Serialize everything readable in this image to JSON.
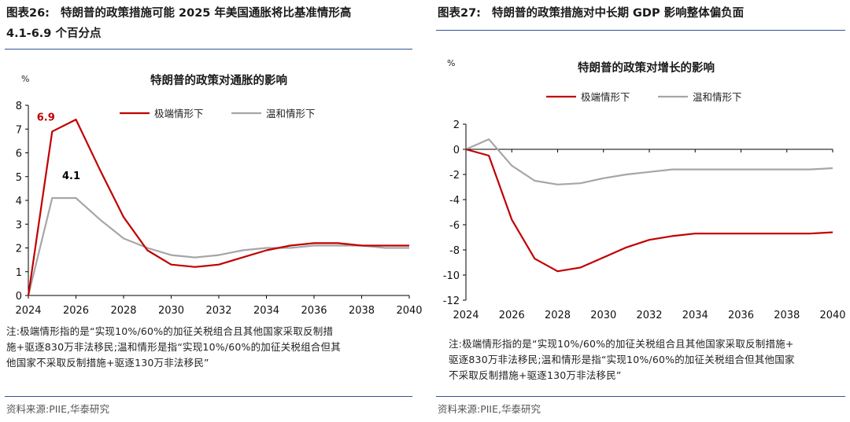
{
  "left": {
    "fig_label": "图表26:",
    "fig_title_line1": "特朗普的政策措施可能 2025 年美国通胀将比基准情形高",
    "fig_title_line2": "4.1-6.9 个百分点",
    "note": "注:极端情形指的是“实现10%/60%的加征关税组合且其他国家采取反制措施+驱逐830万非法移民;温和情形是指“实现10%/60%的加征关税组合但其他国家不采取反制措施+驱逐130万非法移民”",
    "note_lines": [
      "注:极端情形指的是“实现10%/60%的加征关税组合且其他国家采取反制措",
      "施+驱逐830万非法移民;温和情形是指“实现10%/60%的加征关税组合但其",
      "他国家不采取反制措施+驱逐130万非法移民”"
    ],
    "source": "资料来源:PIIE,华泰研究"
  },
  "right": {
    "fig_label": "图表27:",
    "fig_title_line1": "特朗普的政策措施对中长期 GDP 影响整体偏负面",
    "note_lines": [
      "注:极端情形指的是“实现10%/60%的加征关税组合且其他国家采取反制措施+",
      "驱逐830万非法移民;温和情形是指“实现10%/60%的加征关税组合但其他国家",
      "不采取反制措施+驱逐130万非法移民”"
    ],
    "source": "资料来源:PIIE,华泰研究"
  },
  "chart_data": [
    {
      "type": "line",
      "title": "特朗普的政策对通胀的影响",
      "unit_label": "%",
      "xlabel": "",
      "ylabel": "",
      "x": [
        2024,
        2025,
        2026,
        2027,
        2028,
        2029,
        2030,
        2031,
        2032,
        2033,
        2034,
        2035,
        2036,
        2037,
        2038,
        2039,
        2040
      ],
      "xticks": [
        "2024",
        "2026",
        "2028",
        "2030",
        "2032",
        "2034",
        "2036",
        "2038",
        "2040"
      ],
      "xlim": [
        2024,
        2040
      ],
      "ylim": [
        0,
        8
      ],
      "yticks": [
        0,
        1,
        2,
        3,
        4,
        5,
        6,
        7,
        8
      ],
      "grid": false,
      "legend_placement": "top",
      "series": [
        {
          "name": "极端情形下",
          "color": "#c00000",
          "values": [
            0,
            6.9,
            7.4,
            5.3,
            3.3,
            1.9,
            1.3,
            1.2,
            1.3,
            1.6,
            1.9,
            2.1,
            2.2,
            2.2,
            2.1,
            2.1,
            2.1
          ]
        },
        {
          "name": "温和情形下",
          "color": "#a6a6a6",
          "values": [
            0,
            4.1,
            4.1,
            3.2,
            2.4,
            2.0,
            1.7,
            1.6,
            1.7,
            1.9,
            2.0,
            2.0,
            2.1,
            2.1,
            2.1,
            2.0,
            2.0
          ]
        }
      ],
      "annotations": [
        {
          "text": "6.9",
          "x": 2025,
          "y": 6.9,
          "color": "#c00000"
        },
        {
          "text": "4.1",
          "x": 2026,
          "y": 4.1,
          "color": "#000000"
        }
      ]
    },
    {
      "type": "line",
      "title": "特朗普的政策对增长的影响",
      "unit_label": "%",
      "xlabel": "",
      "ylabel": "",
      "x": [
        2024,
        2025,
        2026,
        2027,
        2028,
        2029,
        2030,
        2031,
        2032,
        2033,
        2034,
        2035,
        2036,
        2037,
        2038,
        2039,
        2040
      ],
      "xticks": [
        "2024",
        "2026",
        "2028",
        "2030",
        "2032",
        "2034",
        "2036",
        "2038",
        "2040"
      ],
      "xlim": [
        2024,
        2040
      ],
      "ylim": [
        -12,
        2
      ],
      "yticks": [
        -12,
        -10,
        -8,
        -6,
        -4,
        -2,
        0,
        2
      ],
      "grid": false,
      "legend_placement": "top",
      "series": [
        {
          "name": "极端情形下",
          "color": "#c00000",
          "values": [
            0,
            -0.5,
            -5.6,
            -8.7,
            -9.7,
            -9.4,
            -8.6,
            -7.8,
            -7.2,
            -6.9,
            -6.7,
            -6.7,
            -6.7,
            -6.7,
            -6.7,
            -6.7,
            -6.6
          ]
        },
        {
          "name": "温和情形下",
          "color": "#a6a6a6",
          "values": [
            0,
            0.8,
            -1.3,
            -2.5,
            -2.8,
            -2.7,
            -2.3,
            -2.0,
            -1.8,
            -1.6,
            -1.6,
            -1.6,
            -1.6,
            -1.6,
            -1.6,
            -1.6,
            -1.5
          ]
        }
      ]
    }
  ]
}
